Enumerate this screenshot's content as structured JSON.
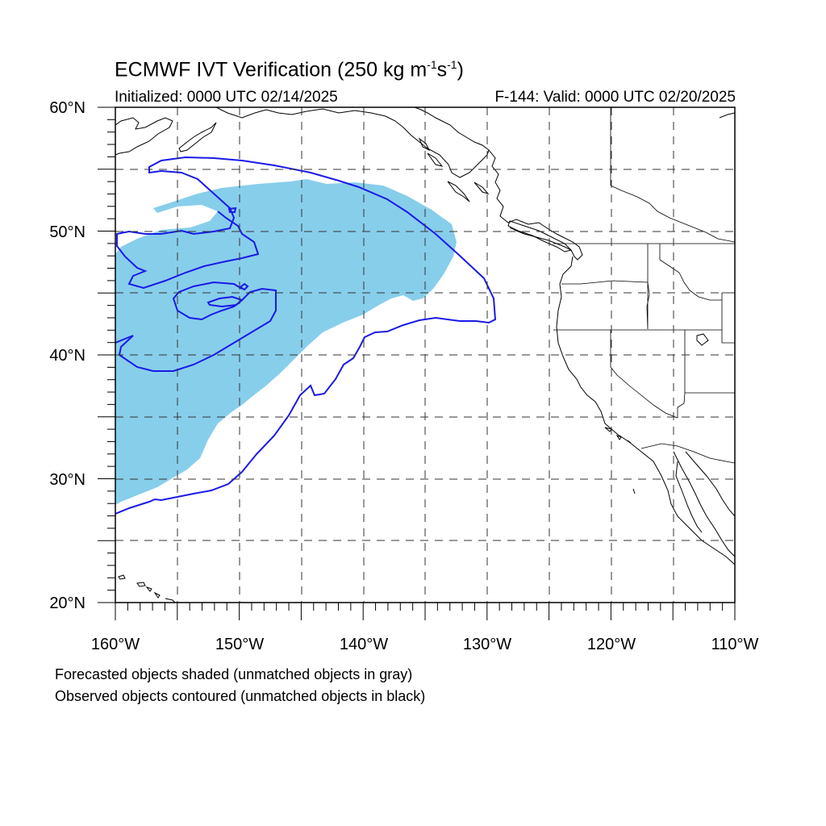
{
  "header": {
    "title_main": "ECMWF IVT Verification (250 kg m",
    "title_exp1": "-1",
    "title_mid": "s",
    "title_exp2": "-1",
    "title_end": ")",
    "initialized": "Initialized: 0000 UTC 02/14/2025",
    "valid": "F-144: Valid: 0000 UTC 02/20/2025"
  },
  "axes": {
    "lon_labels": [
      "160°W",
      "150°W",
      "140°W",
      "130°W",
      "120°W",
      "110°W"
    ],
    "lat_labels": [
      "60°N",
      "50°N",
      "40°N",
      "30°N",
      "20°N"
    ],
    "lon_range": [
      -160,
      -110
    ],
    "lat_range": [
      20,
      60
    ],
    "grid": true
  },
  "footer": {
    "forecast_note": "Forecasted objects shaded (unmatched objects in gray)",
    "observed_note": "Observed objects contoured (unmatched objects in black)"
  },
  "colors": {
    "forecast_fill": "#87ceeb",
    "observed_contour": "#0000ee",
    "coastline": "#000000",
    "grid": "#333333"
  }
}
